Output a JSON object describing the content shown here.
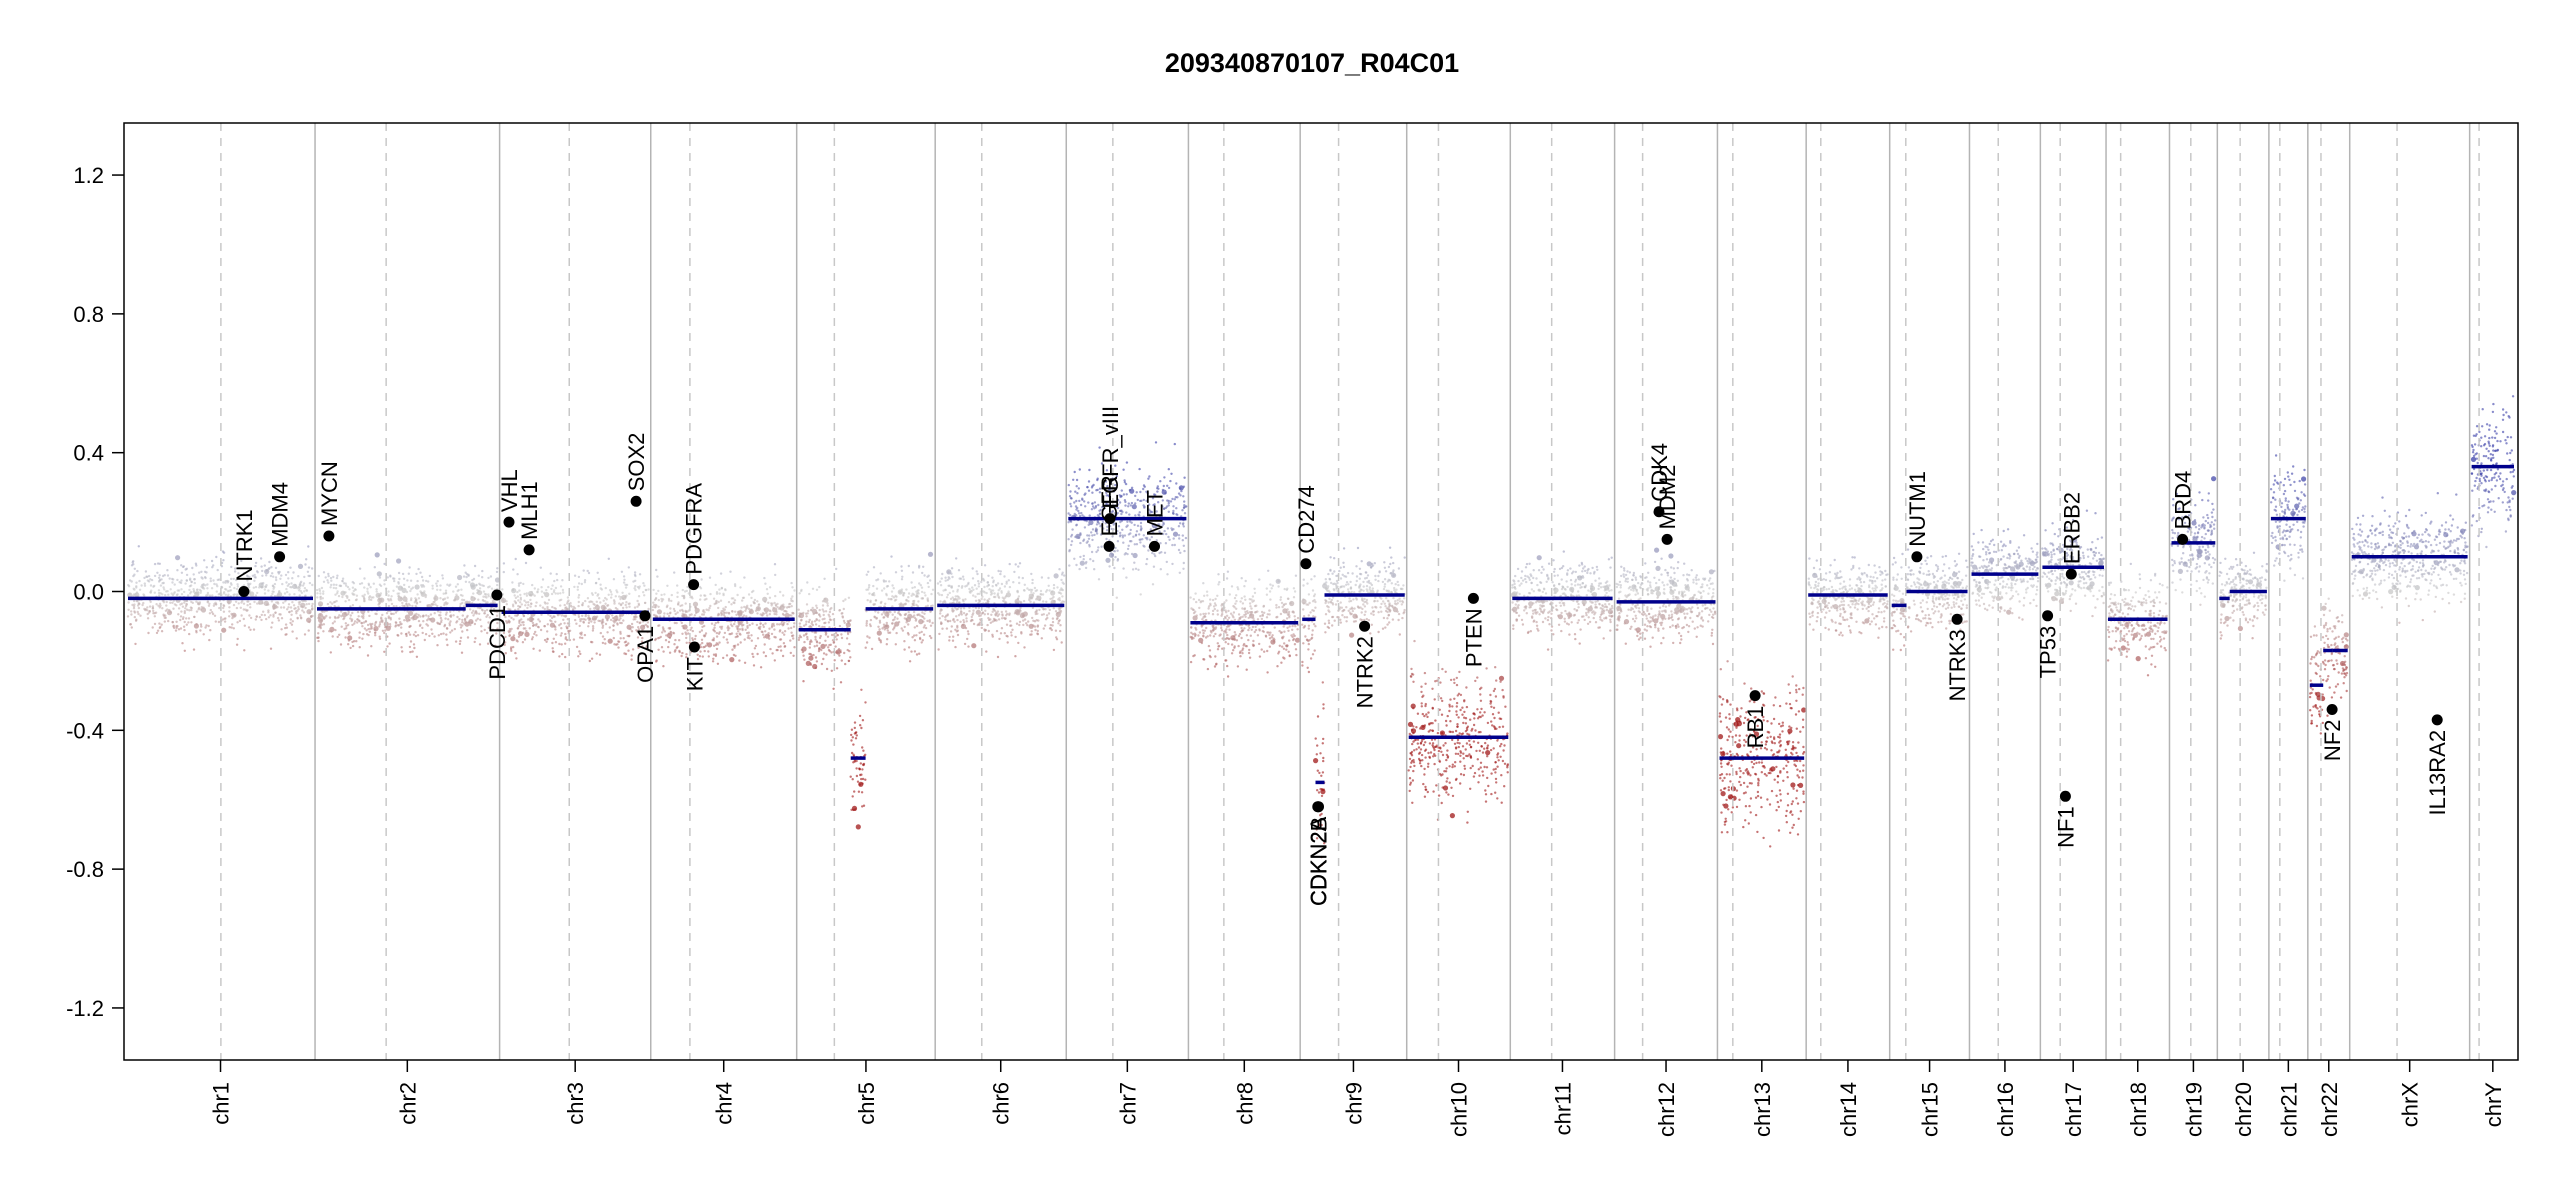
{
  "chart_data": {
    "type": "scatter",
    "title": "209340870107_R04C01",
    "xlabel": "",
    "ylabel": "",
    "ylim": [
      -1.35,
      1.35
    ],
    "y_ticks": [
      -1.2,
      -0.8,
      -0.4,
      0.0,
      0.4,
      0.8,
      1.2
    ],
    "y_tick_labels": [
      "-1.2",
      "-0.8",
      "-0.4",
      "0.0",
      "0.4",
      "0.8",
      "1.2"
    ],
    "grid": false,
    "chromosomes": [
      {
        "name": "chr1",
        "length_mb": 249,
        "centromere_mb": 125
      },
      {
        "name": "chr2",
        "length_mb": 243,
        "centromere_mb": 93
      },
      {
        "name": "chr3",
        "length_mb": 198,
        "centromere_mb": 91
      },
      {
        "name": "chr4",
        "length_mb": 191,
        "centromere_mb": 50
      },
      {
        "name": "chr5",
        "length_mb": 181,
        "centromere_mb": 48
      },
      {
        "name": "chr6",
        "length_mb": 171,
        "centromere_mb": 60
      },
      {
        "name": "chr7",
        "length_mb": 159,
        "centromere_mb": 60
      },
      {
        "name": "chr8",
        "length_mb": 145,
        "centromere_mb": 45
      },
      {
        "name": "chr9",
        "length_mb": 138,
        "centromere_mb": 49
      },
      {
        "name": "chr10",
        "length_mb": 134,
        "centromere_mb": 40
      },
      {
        "name": "chr11",
        "length_mb": 135,
        "centromere_mb": 53
      },
      {
        "name": "chr12",
        "length_mb": 133,
        "centromere_mb": 35
      },
      {
        "name": "chr13",
        "length_mb": 114,
        "centromere_mb": 18
      },
      {
        "name": "chr14",
        "length_mb": 107,
        "centromere_mb": 17
      },
      {
        "name": "chr15",
        "length_mb": 102,
        "centromere_mb": 19
      },
      {
        "name": "chr16",
        "length_mb": 90,
        "centromere_mb": 36
      },
      {
        "name": "chr17",
        "length_mb": 83,
        "centromere_mb": 24
      },
      {
        "name": "chr18",
        "length_mb": 80,
        "centromere_mb": 17
      },
      {
        "name": "chr19",
        "length_mb": 59,
        "centromere_mb": 26
      },
      {
        "name": "chr20",
        "length_mb": 64,
        "centromere_mb": 28
      },
      {
        "name": "chr21",
        "length_mb": 47,
        "centromere_mb": 12
      },
      {
        "name": "chr22",
        "length_mb": 51,
        "centromere_mb": 15
      },
      {
        "name": "chrX",
        "length_mb": 156,
        "centromere_mb": 61
      },
      {
        "name": "chrY",
        "length_mb": 57,
        "centromere_mb": 10
      }
    ],
    "segments": [
      {
        "chr": "chr1",
        "start_mb": 0,
        "end_mb": 249,
        "value": -0.02
      },
      {
        "chr": "chr2",
        "start_mb": 0,
        "end_mb": 200,
        "value": -0.05
      },
      {
        "chr": "chr2",
        "start_mb": 200,
        "end_mb": 243,
        "value": -0.04
      },
      {
        "chr": "chr3",
        "start_mb": 0,
        "end_mb": 198,
        "value": -0.06
      },
      {
        "chr": "chr4",
        "start_mb": 0,
        "end_mb": 191,
        "value": -0.08
      },
      {
        "chr": "chr5",
        "start_mb": 0,
        "end_mb": 70,
        "value": -0.11
      },
      {
        "chr": "chr5",
        "start_mb": 70,
        "end_mb": 90,
        "value": -0.48
      },
      {
        "chr": "chr5",
        "start_mb": 90,
        "end_mb": 181,
        "value": -0.05
      },
      {
        "chr": "chr6",
        "start_mb": 0,
        "end_mb": 171,
        "value": -0.04
      },
      {
        "chr": "chr7",
        "start_mb": 0,
        "end_mb": 159,
        "value": 0.21
      },
      {
        "chr": "chr8",
        "start_mb": 0,
        "end_mb": 145,
        "value": -0.09
      },
      {
        "chr": "chr9",
        "start_mb": 0,
        "end_mb": 18,
        "value": -0.08
      },
      {
        "chr": "chr9",
        "start_mb": 18,
        "end_mb": 30,
        "value": -0.55
      },
      {
        "chr": "chr9",
        "start_mb": 30,
        "end_mb": 138,
        "value": -0.01
      },
      {
        "chr": "chr10",
        "start_mb": 0,
        "end_mb": 134,
        "value": -0.42
      },
      {
        "chr": "chr11",
        "start_mb": 0,
        "end_mb": 135,
        "value": -0.02
      },
      {
        "chr": "chr12",
        "start_mb": 0,
        "end_mb": 133,
        "value": -0.03
      },
      {
        "chr": "chr13",
        "start_mb": 0,
        "end_mb": 114,
        "value": -0.48
      },
      {
        "chr": "chr14",
        "start_mb": 0,
        "end_mb": 107,
        "value": -0.01
      },
      {
        "chr": "chr15",
        "start_mb": 0,
        "end_mb": 20,
        "value": -0.04
      },
      {
        "chr": "chr15",
        "start_mb": 20,
        "end_mb": 102,
        "value": 0.0
      },
      {
        "chr": "chr16",
        "start_mb": 0,
        "end_mb": 90,
        "value": 0.05
      },
      {
        "chr": "chr17",
        "start_mb": 0,
        "end_mb": 83,
        "value": 0.07
      },
      {
        "chr": "chr18",
        "start_mb": 0,
        "end_mb": 80,
        "value": -0.08
      },
      {
        "chr": "chr19",
        "start_mb": 0,
        "end_mb": 59,
        "value": 0.14
      },
      {
        "chr": "chr20",
        "start_mb": 0,
        "end_mb": 14,
        "value": -0.02
      },
      {
        "chr": "chr20",
        "start_mb": 14,
        "end_mb": 64,
        "value": 0.0
      },
      {
        "chr": "chr21",
        "start_mb": 0,
        "end_mb": 47,
        "value": 0.21
      },
      {
        "chr": "chr22",
        "start_mb": 0,
        "end_mb": 18,
        "value": -0.27
      },
      {
        "chr": "chr22",
        "start_mb": 18,
        "end_mb": 30,
        "value": -0.17
      },
      {
        "chr": "chr22",
        "start_mb": 30,
        "end_mb": 51,
        "value": -0.17
      },
      {
        "chr": "chrX",
        "start_mb": 0,
        "end_mb": 156,
        "value": 0.1
      },
      {
        "chr": "chrY",
        "start_mb": 0,
        "end_mb": 57,
        "value": 0.36
      }
    ],
    "genes": [
      {
        "name": "NTRK1",
        "chr": "chr1",
        "pos_mb": 156,
        "value": 0.0,
        "label_side": "above"
      },
      {
        "name": "MDM4",
        "chr": "chr1",
        "pos_mb": 204,
        "value": 0.1,
        "label_side": "above"
      },
      {
        "name": "MYCN",
        "chr": "chr2",
        "pos_mb": 16,
        "value": 0.16,
        "label_side": "above"
      },
      {
        "name": "PDCD1",
        "chr": "chr2",
        "pos_mb": 242,
        "value": -0.01,
        "label_side": "below"
      },
      {
        "name": "VHL",
        "chr": "chr3",
        "pos_mb": 10,
        "value": 0.2,
        "label_side": "above"
      },
      {
        "name": "MLH1",
        "chr": "chr3",
        "pos_mb": 37,
        "value": 0.12,
        "label_side": "above"
      },
      {
        "name": "SOX2",
        "chr": "chr3",
        "pos_mb": 181,
        "value": 0.26,
        "label_side": "above"
      },
      {
        "name": "OPA1",
        "chr": "chr3",
        "pos_mb": 193,
        "value": -0.07,
        "label_side": "below"
      },
      {
        "name": "PDGFRA",
        "chr": "chr4",
        "pos_mb": 55,
        "value": 0.02,
        "label_side": "above"
      },
      {
        "name": "KIT",
        "chr": "chr4",
        "pos_mb": 56,
        "value": -0.16,
        "label_side": "below"
      },
      {
        "name": "EGFR",
        "chr": "chr7",
        "pos_mb": 55,
        "value": 0.13,
        "label_side": "above"
      },
      {
        "name": "EGFR_vIII",
        "chr": "chr7",
        "pos_mb": 56,
        "value": 0.21,
        "label_side": "above"
      },
      {
        "name": "MET",
        "chr": "chr7",
        "pos_mb": 116,
        "value": 0.13,
        "label_side": "above"
      },
      {
        "name": "CD274",
        "chr": "chr9",
        "pos_mb": 5,
        "value": 0.08,
        "label_side": "above"
      },
      {
        "name": "CDKN2A",
        "chr": "chr9",
        "pos_mb": 21,
        "value": -0.62,
        "label_side": "below"
      },
      {
        "name": "CDKN2B",
        "chr": "chr9",
        "pos_mb": 22,
        "value": -0.62,
        "label_side": "below"
      },
      {
        "name": "NTRK2",
        "chr": "chr9",
        "pos_mb": 84,
        "value": -0.1,
        "label_side": "below"
      },
      {
        "name": "PTEN",
        "chr": "chr10",
        "pos_mb": 87,
        "value": -0.02,
        "label_side": "below"
      },
      {
        "name": "CDK4",
        "chr": "chr12",
        "pos_mb": 57,
        "value": 0.23,
        "label_side": "above"
      },
      {
        "name": "MDM2",
        "chr": "chr12",
        "pos_mb": 68,
        "value": 0.15,
        "label_side": "above"
      },
      {
        "name": "RB1",
        "chr": "chr13",
        "pos_mb": 48,
        "value": -0.3,
        "label_side": "below"
      },
      {
        "name": "NUTM1",
        "chr": "chr15",
        "pos_mb": 34,
        "value": 0.1,
        "label_side": "above"
      },
      {
        "name": "NTRK3",
        "chr": "chr15",
        "pos_mb": 88,
        "value": -0.08,
        "label_side": "below"
      },
      {
        "name": "TP53",
        "chr": "chr17",
        "pos_mb": 7,
        "value": -0.07,
        "label_side": "below"
      },
      {
        "name": "ERBB2",
        "chr": "chr17",
        "pos_mb": 39,
        "value": 0.05,
        "label_side": "above"
      },
      {
        "name": "NF1",
        "chr": "chr17",
        "pos_mb": 31,
        "value": -0.59,
        "label_side": "below"
      },
      {
        "name": "BRD4",
        "chr": "chr19",
        "pos_mb": 15,
        "value": 0.15,
        "label_side": "above"
      },
      {
        "name": "NF2",
        "chr": "chr22",
        "pos_mb": 30,
        "value": -0.34,
        "label_side": "below"
      },
      {
        "name": "IL13RA2",
        "chr": "chrX",
        "pos_mb": 115,
        "value": -0.37,
        "label_side": "below"
      }
    ],
    "colors": {
      "gain": "#3a3fa8",
      "loss": "#a01818",
      "neutral": "#c8c8c8",
      "segment": "#00008b",
      "gene_point": "#000000",
      "chr_separator": "#b4b4b4",
      "centromere": "#c8c8c8"
    }
  }
}
